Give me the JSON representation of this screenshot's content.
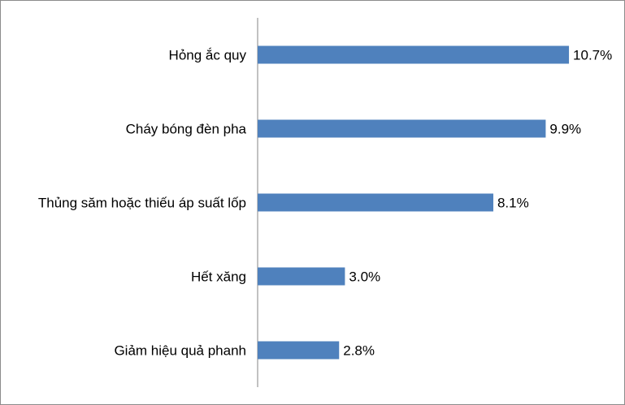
{
  "chart_data": {
    "type": "bar",
    "orientation": "horizontal",
    "categories": [
      "Hỏng ắc quy",
      "Cháy bóng đèn pha",
      "Thủng săm hoặc thiếu áp suất lốp",
      "Hết xăng",
      "Giảm hiệu quả phanh"
    ],
    "values": [
      10.7,
      9.9,
      8.1,
      3.0,
      2.8
    ],
    "data_labels": [
      "10.7%",
      "9.9%",
      "8.1%",
      "3.0%",
      "2.8%"
    ],
    "xlim": [
      0,
      12
    ],
    "grid": false,
    "legend": "none",
    "bar_color": "#4f81bd",
    "axis_color": "#868686"
  }
}
